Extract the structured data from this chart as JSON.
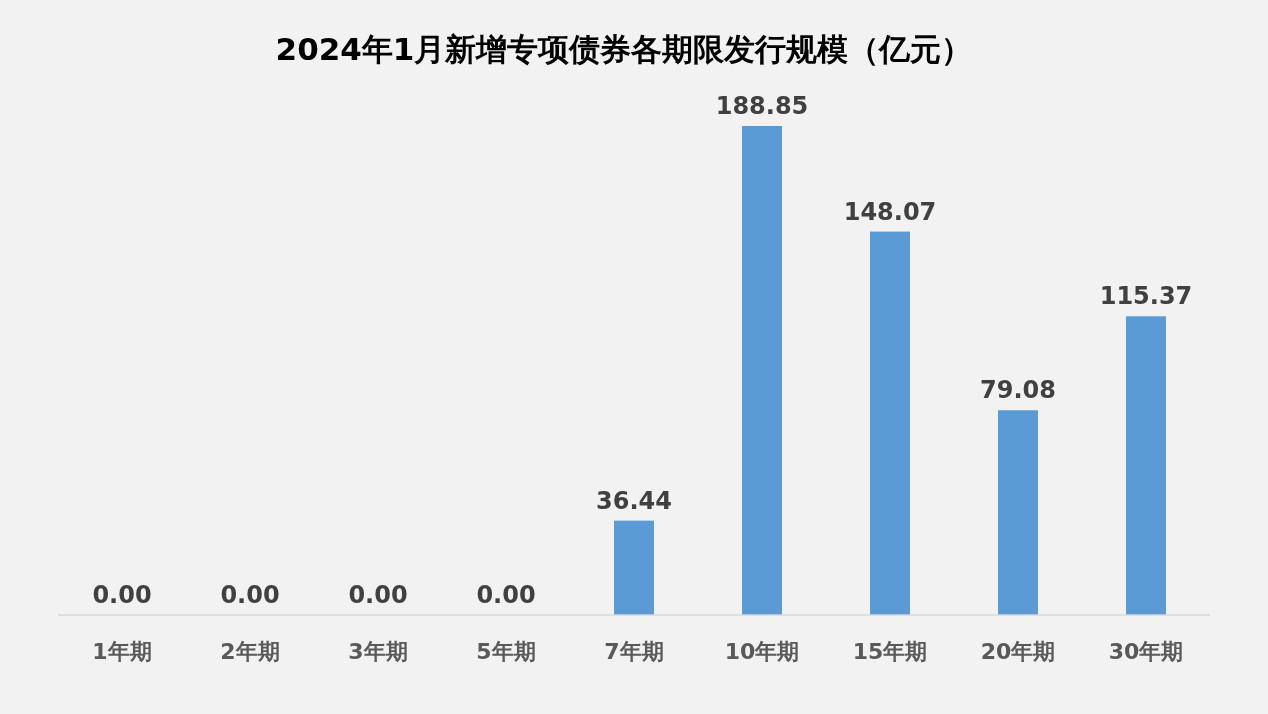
{
  "chart_data": {
    "type": "bar",
    "title": "2024年1月新增专项债券各期限发行规模（亿元）",
    "categories": [
      "1年期",
      "2年期",
      "3年期",
      "5年期",
      "7年期",
      "10年期",
      "15年期",
      "20年期",
      "30年期"
    ],
    "values": [
      0,
      0,
      0,
      0,
      36.44,
      188.85,
      148.07,
      79.08,
      115.37
    ],
    "value_labels": [
      "0.00",
      "0.00",
      "0.00",
      "0.00",
      "36.44",
      "188.85",
      "148.07",
      "79.08",
      "115.37"
    ],
    "color": "#5b9bd5"
  }
}
